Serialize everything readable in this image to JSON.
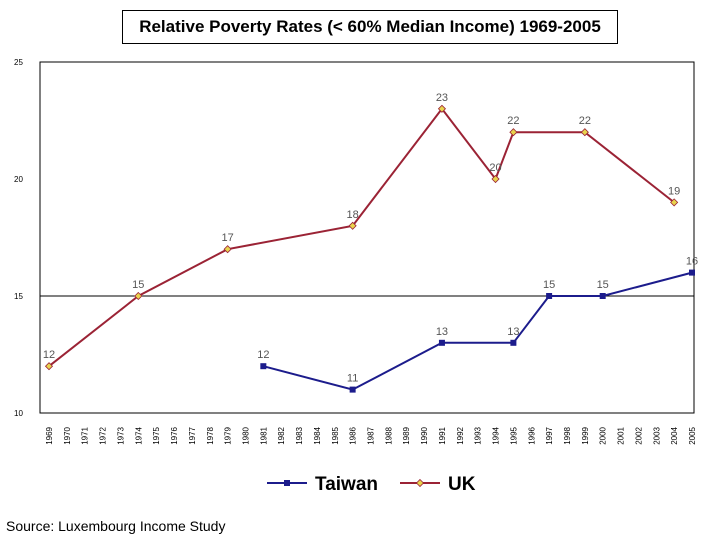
{
  "chart_data": {
    "type": "line",
    "title": "Relative Poverty Rates (< 60% Median Income) 1969-2005",
    "xlabel": "",
    "ylabel": "",
    "ylim": [
      10,
      25
    ],
    "yticks": [
      "10",
      "15",
      "20",
      "25"
    ],
    "categories": [
      "1969",
      "1970",
      "1971",
      "1972",
      "1973",
      "1974",
      "1975",
      "1976",
      "1977",
      "1978",
      "1979",
      "1980",
      "1981",
      "1982",
      "1983",
      "1984",
      "1985",
      "1986",
      "1987",
      "1988",
      "1989",
      "1990",
      "1991",
      "1992",
      "1993",
      "1994",
      "1995",
      "1996",
      "1997",
      "1998",
      "1999",
      "2000",
      "2001",
      "2002",
      "2003",
      "2004",
      "2005"
    ],
    "reference_line": 15,
    "legend_position": "bottom",
    "series": [
      {
        "name": "Taiwan",
        "color": "#1c1c8c",
        "marker": "square",
        "points": [
          {
            "x": "1981",
            "y": 12,
            "label": "12"
          },
          {
            "x": "1986",
            "y": 11,
            "label": "11"
          },
          {
            "x": "1991",
            "y": 13,
            "label": "13"
          },
          {
            "x": "1995",
            "y": 13,
            "label": "13"
          },
          {
            "x": "1997",
            "y": 15,
            "label": "15"
          },
          {
            "x": "2000",
            "y": 15,
            "label": "15"
          },
          {
            "x": "2005",
            "y": 16,
            "label": "16"
          }
        ]
      },
      {
        "name": "UK",
        "color": "#9b2335",
        "marker": "diamond",
        "marker_color": "#e8d44d",
        "points": [
          {
            "x": "1969",
            "y": 12,
            "label": "12"
          },
          {
            "x": "1974",
            "y": 15,
            "label": "15"
          },
          {
            "x": "1979",
            "y": 17,
            "label": "17"
          },
          {
            "x": "1986",
            "y": 18,
            "label": "18"
          },
          {
            "x": "1991",
            "y": 23,
            "label": "23"
          },
          {
            "x": "1994",
            "y": 20,
            "label": "20"
          },
          {
            "x": "1995",
            "y": 22,
            "label": "22"
          },
          {
            "x": "1999",
            "y": 22,
            "label": "22"
          },
          {
            "x": "2004",
            "y": 19,
            "label": "19"
          }
        ]
      }
    ]
  },
  "footer": {
    "source": "Source: Luxembourg Income Study"
  }
}
